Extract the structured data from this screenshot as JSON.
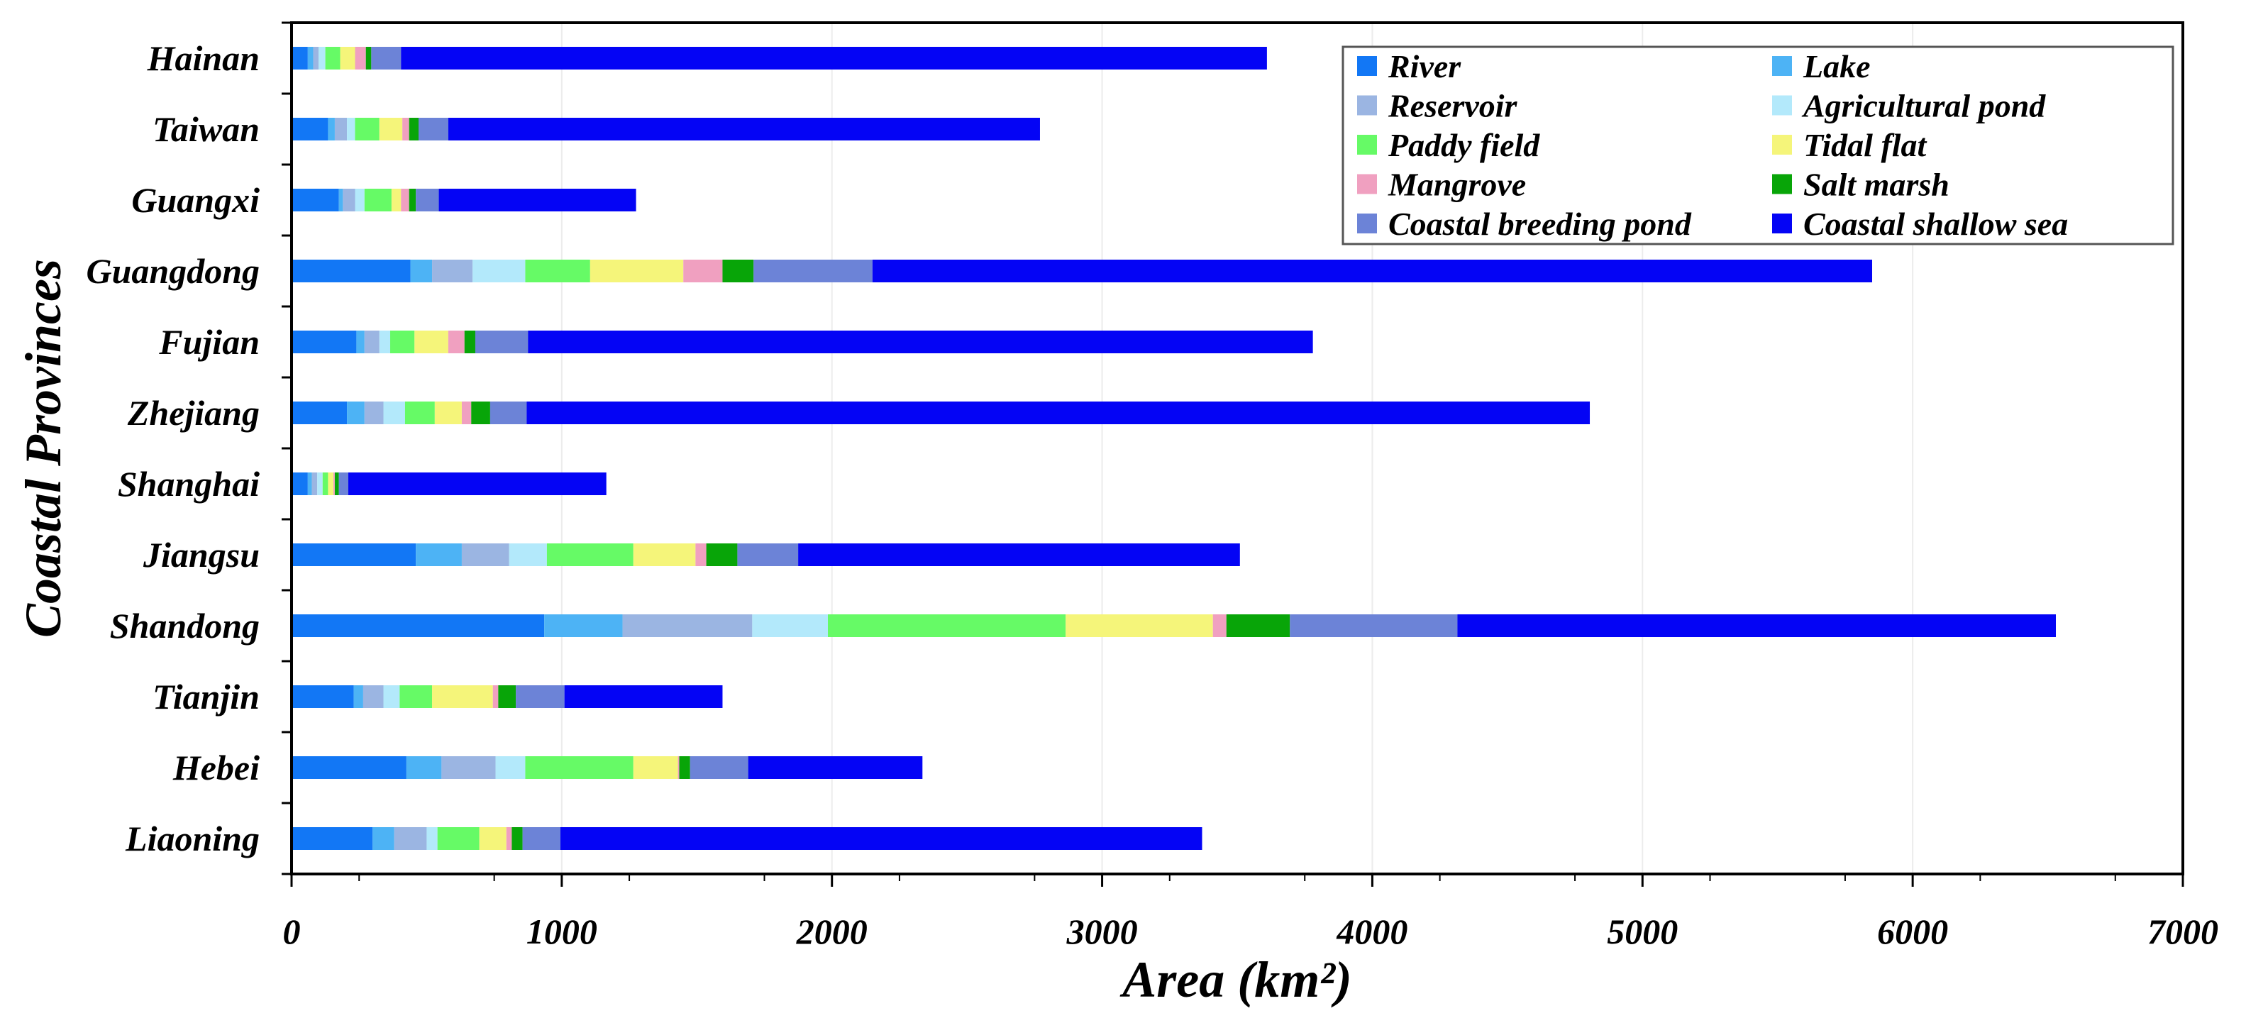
{
  "chart_data": {
    "type": "bar",
    "orientation": "horizontal",
    "stacked": true,
    "xlabel": "Area (km²)",
    "ylabel": "Coastal Provinces",
    "xlim": [
      0,
      7000
    ],
    "xticks": [
      0,
      1000,
      2000,
      3000,
      4000,
      5000,
      6000,
      7000
    ],
    "grid": "vertical",
    "legend_position": "top-right",
    "categories": [
      "Liaoning",
      "Hebei",
      "Tianjin",
      "Shandong",
      "Jiangsu",
      "Shanghai",
      "Zhejiang",
      "Fujian",
      "Guangdong",
      "Guangxi",
      "Taiwan",
      "Hainan"
    ],
    "series": [
      {
        "name": "River",
        "color": "#1277f5",
        "values": [
          300,
          425,
          230,
          935,
          460,
          60,
          205,
          240,
          440,
          175,
          135,
          60
        ]
      },
      {
        "name": "Lake",
        "color": "#4db3f5",
        "values": [
          80,
          130,
          35,
          290,
          170,
          15,
          65,
          30,
          80,
          15,
          25,
          20
        ]
      },
      {
        "name": "Reservoir",
        "color": "#9bb5e2",
        "values": [
          120,
          200,
          75,
          480,
          175,
          20,
          70,
          55,
          150,
          45,
          45,
          20
        ]
      },
      {
        "name": "Agricultural pond",
        "color": "#b3e9fb",
        "values": [
          40,
          110,
          60,
          280,
          140,
          20,
          80,
          40,
          195,
          35,
          30,
          25
        ]
      },
      {
        "name": "Paddy field",
        "color": "#66fa66",
        "values": [
          155,
          400,
          120,
          880,
          320,
          20,
          110,
          90,
          240,
          100,
          90,
          55
        ]
      },
      {
        "name": "Tidal flat",
        "color": "#f5f57a",
        "values": [
          100,
          165,
          225,
          545,
          230,
          20,
          100,
          125,
          345,
          35,
          85,
          55
        ]
      },
      {
        "name": "Mangrove",
        "color": "#f0a0c0",
        "values": [
          20,
          5,
          20,
          50,
          40,
          5,
          35,
          60,
          145,
          30,
          25,
          40
        ]
      },
      {
        "name": "Salt marsh",
        "color": "#08a508",
        "values": [
          40,
          40,
          65,
          235,
          115,
          15,
          70,
          40,
          115,
          25,
          35,
          20
        ]
      },
      {
        "name": "Coastal breeding pond",
        "color": "#6c83d7",
        "values": [
          140,
          215,
          180,
          620,
          225,
          35,
          135,
          195,
          440,
          85,
          110,
          110
        ]
      },
      {
        "name": "Coastal shallow sea",
        "color": "#0404f5",
        "values": [
          2375,
          645,
          585,
          2215,
          1635,
          955,
          3935,
          2905,
          3700,
          730,
          2190,
          3205
        ]
      }
    ]
  }
}
